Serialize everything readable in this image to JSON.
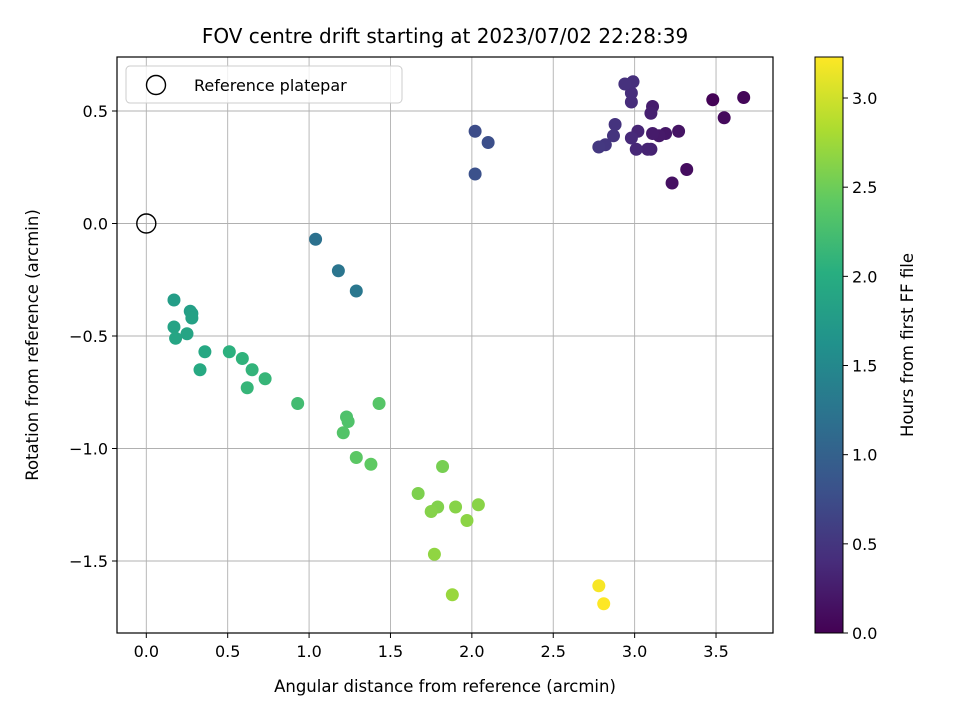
{
  "chart_data": {
    "type": "scatter",
    "title": "FOV centre drift starting at 2023/07/02 22:28:39",
    "xlabel": "Angular distance from reference (arcmin)",
    "ylabel": "Rotation from reference (arcmin)",
    "xlim": [
      -0.18,
      3.85
    ],
    "ylim": [
      -1.82,
      0.74
    ],
    "xticks": [
      0.0,
      0.5,
      1.0,
      1.5,
      2.0,
      2.5,
      3.0,
      3.5
    ],
    "xtick_labels": [
      "0.0",
      "0.5",
      "1.0",
      "1.5",
      "2.0",
      "2.5",
      "3.0",
      "3.5"
    ],
    "yticks": [
      0.5,
      0.0,
      -0.5,
      -1.0,
      -1.5
    ],
    "ytick_labels": [
      "0.5",
      "0.0",
      "−0.5",
      "−1.0",
      "−1.5"
    ],
    "grid": true,
    "legend": {
      "position": "top-left",
      "entries": [
        "Reference platepar"
      ]
    },
    "reference_point": {
      "x": 0.0,
      "y": 0.0
    },
    "colorbar": {
      "label": "Hours from first FF file",
      "colormap": "viridis",
      "range": [
        0.0,
        3.23
      ],
      "ticks": [
        0.0,
        0.5,
        1.0,
        1.5,
        2.0,
        2.5,
        3.0
      ],
      "tick_labels": [
        "0.0",
        "0.5",
        "1.0",
        "1.5",
        "2.0",
        "2.5",
        "3.0"
      ]
    },
    "points": [
      {
        "x": 3.48,
        "y": 0.55,
        "c": 0.02
      },
      {
        "x": 3.67,
        "y": 0.56,
        "c": 0.05
      },
      {
        "x": 3.55,
        "y": 0.47,
        "c": 0.08
      },
      {
        "x": 3.32,
        "y": 0.24,
        "c": 0.11
      },
      {
        "x": 3.23,
        "y": 0.18,
        "c": 0.14
      },
      {
        "x": 3.27,
        "y": 0.41,
        "c": 0.17
      },
      {
        "x": 3.19,
        "y": 0.4,
        "c": 0.2
      },
      {
        "x": 3.15,
        "y": 0.39,
        "c": 0.22
      },
      {
        "x": 3.11,
        "y": 0.4,
        "c": 0.24
      },
      {
        "x": 3.11,
        "y": 0.52,
        "c": 0.26
      },
      {
        "x": 3.1,
        "y": 0.49,
        "c": 0.28
      },
      {
        "x": 3.1,
        "y": 0.33,
        "c": 0.3
      },
      {
        "x": 3.08,
        "y": 0.33,
        "c": 0.32
      },
      {
        "x": 3.02,
        "y": 0.41,
        "c": 0.34
      },
      {
        "x": 3.01,
        "y": 0.33,
        "c": 0.36
      },
      {
        "x": 2.98,
        "y": 0.38,
        "c": 0.38
      },
      {
        "x": 2.98,
        "y": 0.54,
        "c": 0.4
      },
      {
        "x": 2.98,
        "y": 0.58,
        "c": 0.42
      },
      {
        "x": 2.99,
        "y": 0.63,
        "c": 0.43
      },
      {
        "x": 2.94,
        "y": 0.62,
        "c": 0.45
      },
      {
        "x": 2.88,
        "y": 0.44,
        "c": 0.47
      },
      {
        "x": 2.87,
        "y": 0.39,
        "c": 0.48
      },
      {
        "x": 2.82,
        "y": 0.35,
        "c": 0.5
      },
      {
        "x": 2.78,
        "y": 0.34,
        "c": 0.52
      },
      {
        "x": 2.02,
        "y": 0.41,
        "c": 0.75
      },
      {
        "x": 2.1,
        "y": 0.36,
        "c": 0.78
      },
      {
        "x": 2.02,
        "y": 0.22,
        "c": 0.8
      },
      {
        "x": 1.04,
        "y": -0.07,
        "c": 1.2
      },
      {
        "x": 1.18,
        "y": -0.21,
        "c": 1.25
      },
      {
        "x": 1.29,
        "y": -0.3,
        "c": 1.28
      },
      {
        "x": 0.17,
        "y": -0.34,
        "c": 1.78
      },
      {
        "x": 0.27,
        "y": -0.39,
        "c": 1.8
      },
      {
        "x": 0.28,
        "y": -0.4,
        "c": 1.82
      },
      {
        "x": 0.28,
        "y": -0.42,
        "c": 1.84
      },
      {
        "x": 0.17,
        "y": -0.46,
        "c": 1.86
      },
      {
        "x": 0.25,
        "y": -0.49,
        "c": 1.88
      },
      {
        "x": 0.18,
        "y": -0.51,
        "c": 1.9
      },
      {
        "x": 0.36,
        "y": -0.57,
        "c": 1.93
      },
      {
        "x": 0.33,
        "y": -0.65,
        "c": 1.95
      },
      {
        "x": 0.51,
        "y": -0.57,
        "c": 2.05
      },
      {
        "x": 0.59,
        "y": -0.6,
        "c": 2.08
      },
      {
        "x": 0.65,
        "y": -0.65,
        "c": 2.1
      },
      {
        "x": 0.73,
        "y": -0.69,
        "c": 2.13
      },
      {
        "x": 0.62,
        "y": -0.73,
        "c": 2.12
      },
      {
        "x": 0.93,
        "y": -0.8,
        "c": 2.22
      },
      {
        "x": 1.23,
        "y": -0.86,
        "c": 2.3
      },
      {
        "x": 1.24,
        "y": -0.88,
        "c": 2.32
      },
      {
        "x": 1.21,
        "y": -0.93,
        "c": 2.34
      },
      {
        "x": 1.43,
        "y": -0.8,
        "c": 2.36
      },
      {
        "x": 1.29,
        "y": -1.04,
        "c": 2.4
      },
      {
        "x": 1.38,
        "y": -1.07,
        "c": 2.42
      },
      {
        "x": 1.82,
        "y": -1.08,
        "c": 2.55
      },
      {
        "x": 1.67,
        "y": -1.2,
        "c": 2.58
      },
      {
        "x": 1.79,
        "y": -1.26,
        "c": 2.6
      },
      {
        "x": 1.75,
        "y": -1.28,
        "c": 2.62
      },
      {
        "x": 1.9,
        "y": -1.26,
        "c": 2.63
      },
      {
        "x": 2.04,
        "y": -1.25,
        "c": 2.64
      },
      {
        "x": 1.97,
        "y": -1.32,
        "c": 2.66
      },
      {
        "x": 1.77,
        "y": -1.47,
        "c": 2.68
      },
      {
        "x": 1.88,
        "y": -1.65,
        "c": 2.72
      },
      {
        "x": 2.78,
        "y": -1.61,
        "c": 3.2
      },
      {
        "x": 2.81,
        "y": -1.69,
        "c": 3.23
      }
    ]
  }
}
